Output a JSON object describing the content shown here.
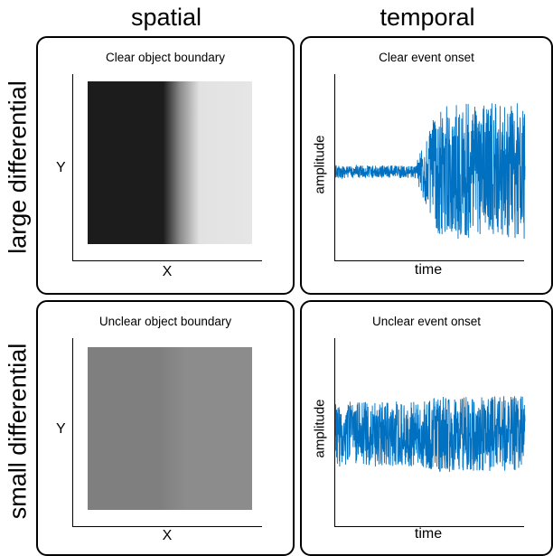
{
  "columns": {
    "spatial": "spatial",
    "temporal": "temporal"
  },
  "rows": {
    "large": "large differential",
    "small": "small differential"
  },
  "panels": {
    "tl": {
      "title": "Clear object boundary",
      "xlabel": "X",
      "ylabel": "Y"
    },
    "tr": {
      "title": "Clear event onset",
      "xlabel": "time",
      "ylabel": "amplitude"
    },
    "bl": {
      "title": "Unclear object boundary",
      "xlabel": "X",
      "ylabel": "Y"
    },
    "br": {
      "title": "Unclear event onset",
      "xlabel": "time",
      "ylabel": "amplitude"
    }
  },
  "colors": {
    "signal": "#0070c0",
    "dark_side": "#1c1c1c",
    "light_side": "#e6e6e6",
    "gray_left": "#7f7f7f",
    "gray_right": "#8c8c8c"
  }
}
